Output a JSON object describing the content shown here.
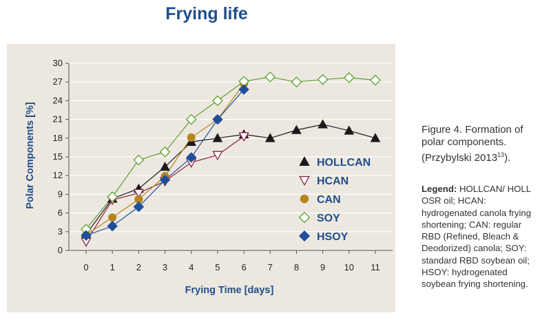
{
  "page": {
    "title": "Frying life",
    "caption_text": "Figure 4. Formation of polar components. (Przybylski 2013",
    "caption_sup": "13",
    "caption_end": ").",
    "legend_label": "Legend:",
    "legend_text": " HOLLCAN/ HOLL OSR oil; HCAN: hydrogenated canola frying shortening; CAN: regular RBD (Refined, Bleach & Deodorized) canola; SOY: standard RBD soybean oil; HSOY: hydrogenated soybean frying shortening."
  },
  "chart_data": {
    "type": "line",
    "xlabel": "Frying Time [days]",
    "ylabel": "Polar Components [%]",
    "xlim": [
      0,
      11
    ],
    "ylim": [
      0,
      30
    ],
    "xticks": [
      0,
      1,
      2,
      3,
      4,
      5,
      6,
      7,
      8,
      9,
      10,
      11
    ],
    "yticks": [
      0,
      3,
      6,
      9,
      12,
      15,
      18,
      21,
      24,
      27,
      30
    ],
    "grid": "horizontal",
    "legend_position": "lower-right",
    "background": "#ece8e0",
    "series": [
      {
        "name": "HOLLCAN",
        "marker": "filled-triangle",
        "color": "#1a1a1a",
        "x": [
          0,
          1,
          2,
          3,
          4,
          5,
          6,
          7,
          8,
          9,
          10,
          11
        ],
        "values": [
          2.6,
          8.3,
          9.9,
          13.4,
          17.4,
          18.0,
          18.6,
          18.0,
          19.3,
          20.2,
          19.2,
          18.0
        ]
      },
      {
        "name": "HCAN",
        "marker": "open-inverted-triangle",
        "color": "#8c2040",
        "x": [
          0,
          1,
          2,
          3,
          4,
          5,
          6
        ],
        "values": [
          1.4,
          8.1,
          9.2,
          11.1,
          14.1,
          15.3,
          18.3
        ]
      },
      {
        "name": "CAN",
        "marker": "filled-circle",
        "color": "#b5851e",
        "x": [
          0,
          1,
          2,
          3,
          4,
          5,
          6
        ],
        "values": [
          2.5,
          5.3,
          8.2,
          11.9,
          18.1,
          21.0,
          26.7
        ]
      },
      {
        "name": "SOY",
        "marker": "open-diamond",
        "color": "#5aa02c",
        "x": [
          0,
          1,
          2,
          3,
          4,
          5,
          6,
          7,
          8,
          9,
          10,
          11
        ],
        "values": [
          3.4,
          8.6,
          14.5,
          15.8,
          21.0,
          24.0,
          27.1,
          27.8,
          27.0,
          27.4,
          27.7,
          27.3
        ]
      },
      {
        "name": "HSOY",
        "marker": "filled-diamond",
        "color": "#1f4e9c",
        "x": [
          0,
          1,
          2,
          3,
          4,
          5,
          6
        ],
        "values": [
          2.4,
          3.9,
          7.0,
          11.3,
          14.9,
          21.0,
          25.8
        ]
      }
    ]
  }
}
